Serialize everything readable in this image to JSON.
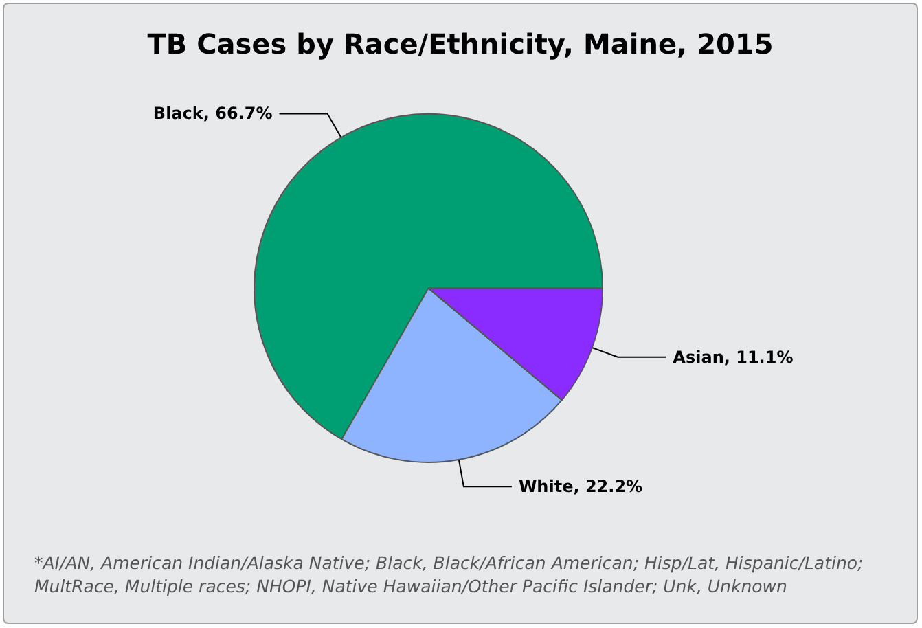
{
  "chart_data": {
    "type": "pie",
    "title": "TB Cases by Race/Ethnicity, Maine, 2015",
    "categories": [
      "Black",
      "White",
      "Asian"
    ],
    "values": [
      66.7,
      22.2,
      11.1
    ],
    "colors": [
      "#009e73",
      "#8fb4ff",
      "#8a2cff"
    ],
    "value_labels": [
      "66.7%",
      "22.2%",
      "11.1%"
    ],
    "legend": false,
    "annotations": [
      "*AI/AN, American Indian/Alaska Native; Black, Black/African American; Hisp/Lat, Hispanic/Latino; MultRace, Multiple races; NHOPI, Native Hawaiian/Other Pacific Islander; Unk, Unknown"
    ]
  }
}
